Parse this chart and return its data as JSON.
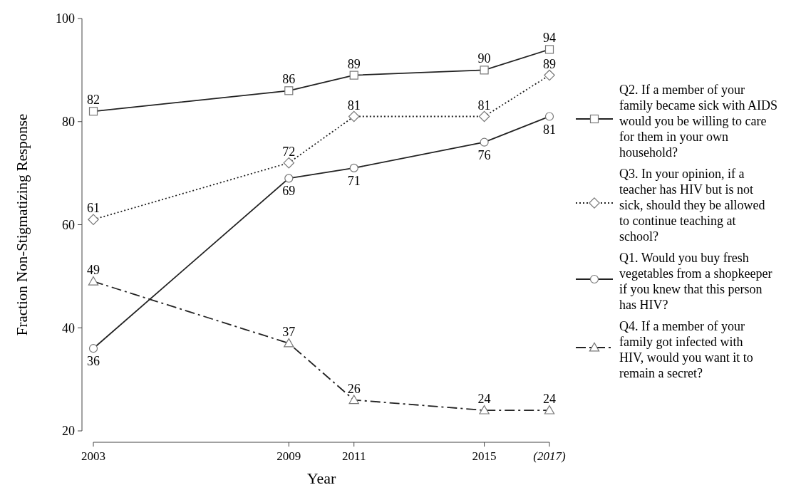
{
  "chart_data": {
    "type": "line",
    "xlabel": "Year",
    "ylabel": "Fraction Non-Stigmatizing Response",
    "x": [
      2003,
      2009,
      2011,
      2015,
      2017
    ],
    "xlim": [
      2003,
      2017
    ],
    "xticks": [
      2003,
      2009,
      2011,
      2015,
      {
        "value": 2017,
        "label": "(2017)"
      }
    ],
    "ylim": [
      20,
      100
    ],
    "yticks": [
      20,
      40,
      60,
      80,
      100
    ],
    "data_labels": true,
    "legend": "right",
    "series": [
      {
        "name": "Q2. If a member of your family became sick with AIDS would you be willing to care for them in your own household?",
        "color": "#222222",
        "marker": "square",
        "line_style": "solid",
        "values": [
          82,
          86,
          89,
          90,
          94
        ]
      },
      {
        "name": "Q3. In your opinion, if a teacher has HIV but is not sick, should they be allowed to continue teaching at school?",
        "color": "#222222",
        "marker": "diamond",
        "line_style": "dotted",
        "values": [
          61,
          72,
          81,
          81,
          89
        ]
      },
      {
        "name": "Q1. Would you buy fresh vegetables from a shopkeeper if you knew that this person has HIV?",
        "color": "#222222",
        "marker": "circle",
        "line_style": "solid",
        "values": [
          36,
          69,
          71,
          76,
          81
        ]
      },
      {
        "name": "Q4. If a member of your family got infected with HIV, would you want it to remain a secret?",
        "color": "#222222",
        "marker": "triangle",
        "line_style": "dashed",
        "values": [
          49,
          37,
          26,
          24,
          24
        ]
      }
    ]
  }
}
